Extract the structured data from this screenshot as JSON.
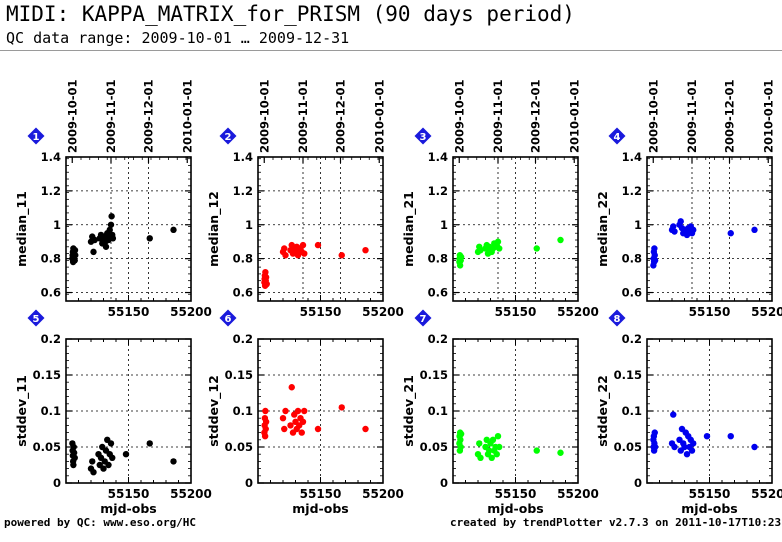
{
  "header": {
    "title": "MIDI: KAPPA_MATRIX_for_PRISM (90 days period)",
    "subtitle": "QC data range: 2009-10-01 … 2009-12-31"
  },
  "footer": {
    "left": "powered by QC: www.eso.org/HC",
    "right": "created by trendPlotter v2.7.3 on 2011-10-17T10:23:24"
  },
  "colors": {
    "black": "#000000",
    "red": "#ff0000",
    "green": "#00ff00",
    "blue": "#0000ee",
    "badge": "#1a1adc"
  },
  "chart_data": [
    {
      "type": "scatter",
      "badge": "1",
      "ylabel": "median_11",
      "color": "#000000",
      "ylim": [
        0.55,
        1.4
      ],
      "yticks": [
        "0.6",
        "0.8",
        "1",
        "1.2",
        "1.4"
      ],
      "xlim": [
        55100,
        55200
      ],
      "xticks": [
        "55150",
        "55200"
      ],
      "date_ticks": [
        "2009-10-01",
        "2009-11-01",
        "2009-12-01",
        "2010-01-01"
      ],
      "xlabel": "",
      "grid": "dotted",
      "x": [
        55105.1,
        55105.3,
        55105.5,
        55105.7,
        55105.9,
        55106.2,
        55106.5,
        55107,
        55107.2,
        55107.4,
        55120,
        55121,
        55122,
        55123,
        55127,
        55128,
        55129,
        55129.5,
        55131,
        55131.5,
        55132,
        55133,
        55134,
        55135,
        55135.5,
        55136,
        55136.5,
        55137,
        55137.5,
        55167,
        55186
      ],
      "y": [
        0.8,
        0.82,
        0.84,
        0.78,
        0.86,
        0.81,
        0.83,
        0.79,
        0.85,
        0.82,
        0.9,
        0.93,
        0.84,
        0.91,
        0.92,
        0.94,
        0.89,
        0.91,
        0.93,
        0.9,
        0.87,
        0.95,
        0.91,
        0.97,
        0.93,
        1.0,
        1.05,
        0.94,
        0.92,
        0.92,
        0.97
      ]
    },
    {
      "type": "scatter",
      "badge": "2",
      "ylabel": "median_12",
      "color": "#ff0000",
      "ylim": [
        0.55,
        1.4
      ],
      "yticks": [
        "0.6",
        "0.8",
        "1",
        "1.2",
        "1.4"
      ],
      "xlim": [
        55100,
        55200
      ],
      "xticks": [
        "55150",
        "55200"
      ],
      "date_ticks": [
        "2009-10-01",
        "2009-11-01",
        "2009-12-01",
        "2010-01-01"
      ],
      "xlabel": "",
      "grid": "dotted",
      "x": [
        55105.1,
        55105.3,
        55105.5,
        55105.7,
        55105.9,
        55106.2,
        55106.5,
        55107,
        55120,
        55121,
        55122,
        55126,
        55127,
        55128,
        55129,
        55130,
        55131,
        55132,
        55133,
        55134,
        55135,
        55136,
        55137,
        55148,
        55167,
        55186
      ],
      "y": [
        0.66,
        0.68,
        0.7,
        0.64,
        0.72,
        0.67,
        0.69,
        0.65,
        0.84,
        0.86,
        0.82,
        0.85,
        0.88,
        0.83,
        0.86,
        0.84,
        0.87,
        0.82,
        0.85,
        0.86,
        0.84,
        0.88,
        0.83,
        0.88,
        0.82,
        0.85
      ]
    },
    {
      "type": "scatter",
      "badge": "3",
      "ylabel": "median_21",
      "color": "#00ff00",
      "ylim": [
        0.55,
        1.4
      ],
      "yticks": [
        "0.6",
        "0.8",
        "1",
        "1.2",
        "1.4"
      ],
      "xlim": [
        55100,
        55200
      ],
      "xticks": [
        "55150",
        "55200"
      ],
      "date_ticks": [
        "2009-10-01",
        "2009-11-01",
        "2009-12-01",
        "2010-01-01"
      ],
      "xlabel": "",
      "grid": "dotted",
      "x": [
        55105.1,
        55105.3,
        55105.5,
        55105.7,
        55105.9,
        55106.2,
        55106.5,
        55120,
        55121,
        55122,
        55126,
        55127,
        55128,
        55129,
        55130,
        55131,
        55132,
        55133,
        55134,
        55135,
        55136,
        55137,
        55167,
        55186
      ],
      "y": [
        0.78,
        0.8,
        0.82,
        0.76,
        0.8,
        0.79,
        0.81,
        0.84,
        0.87,
        0.85,
        0.86,
        0.88,
        0.83,
        0.87,
        0.85,
        0.84,
        0.86,
        0.89,
        0.87,
        0.88,
        0.9,
        0.86,
        0.86,
        0.91
      ]
    },
    {
      "type": "scatter",
      "badge": "4",
      "ylabel": "median_22",
      "color": "#0000ee",
      "ylim": [
        0.55,
        1.4
      ],
      "yticks": [
        "0.6",
        "0.8",
        "1",
        "1.2",
        "1.4"
      ],
      "xlim": [
        55100,
        55200
      ],
      "xticks": [
        "55150",
        "55200"
      ],
      "date_ticks": [
        "2009-10-01",
        "2009-11-01",
        "2009-12-01",
        "2010-01-01"
      ],
      "xlabel": "",
      "grid": "dotted",
      "x": [
        55105.1,
        55105.3,
        55105.5,
        55105.7,
        55105.9,
        55106.2,
        55106.5,
        55120,
        55121,
        55122,
        55126,
        55127,
        55128,
        55129,
        55130,
        55131,
        55132,
        55133,
        55134,
        55135,
        55136,
        55137,
        55167,
        55186
      ],
      "y": [
        0.76,
        0.8,
        0.84,
        0.78,
        0.86,
        0.82,
        0.79,
        0.97,
        0.99,
        0.96,
        1.0,
        1.02,
        0.98,
        0.95,
        0.97,
        0.96,
        0.94,
        0.98,
        0.96,
        0.99,
        0.95,
        0.97,
        0.95,
        0.97
      ]
    },
    {
      "type": "scatter",
      "badge": "5",
      "ylabel": "stddev_11",
      "color": "#000000",
      "ylim": [
        0,
        0.2
      ],
      "yticks": [
        "0",
        "0.05",
        "0.1",
        "0.15",
        "0.2"
      ],
      "xlim": [
        55100,
        55200
      ],
      "xticks": [
        "55150",
        "55200"
      ],
      "xlabel": "mjd-obs",
      "grid": "dotted",
      "x": [
        55105.1,
        55105.3,
        55105.5,
        55105.7,
        55105.9,
        55106.2,
        55106.5,
        55107,
        55120,
        55121,
        55122,
        55126,
        55127,
        55128,
        55129,
        55130,
        55131,
        55132,
        55133,
        55134,
        55135,
        55136,
        55137,
        55148,
        55167,
        55186
      ],
      "y": [
        0.055,
        0.045,
        0.038,
        0.03,
        0.025,
        0.05,
        0.042,
        0.035,
        0.02,
        0.03,
        0.015,
        0.04,
        0.025,
        0.035,
        0.05,
        0.02,
        0.03,
        0.045,
        0.06,
        0.025,
        0.04,
        0.055,
        0.035,
        0.04,
        0.055,
        0.03
      ]
    },
    {
      "type": "scatter",
      "badge": "6",
      "ylabel": "stddev_12",
      "color": "#ff0000",
      "ylim": [
        0,
        0.2
      ],
      "yticks": [
        "0",
        "0.05",
        "0.1",
        "0.15",
        "0.2"
      ],
      "xlim": [
        55100,
        55200
      ],
      "xticks": [
        "55150",
        "55200"
      ],
      "xlabel": "mjd-obs",
      "grid": "dotted",
      "x": [
        55105.1,
        55105.3,
        55105.5,
        55105.7,
        55105.9,
        55106.2,
        55106.5,
        55120,
        55121,
        55122,
        55126,
        55127,
        55128,
        55129,
        55130,
        55131,
        55132,
        55133,
        55134,
        55135,
        55136,
        55137,
        55148,
        55167,
        55186
      ],
      "y": [
        0.07,
        0.08,
        0.09,
        0.065,
        0.1,
        0.075,
        0.085,
        0.09,
        0.075,
        0.1,
        0.08,
        0.133,
        0.07,
        0.095,
        0.085,
        0.075,
        0.1,
        0.08,
        0.09,
        0.07,
        0.085,
        0.1,
        0.075,
        0.105,
        0.075
      ]
    },
    {
      "type": "scatter",
      "badge": "7",
      "ylabel": "stddev_21",
      "color": "#00ff00",
      "ylim": [
        0,
        0.2
      ],
      "yticks": [
        "0",
        "0.05",
        "0.1",
        "0.15",
        "0.2"
      ],
      "xlim": [
        55100,
        55200
      ],
      "xticks": [
        "55150",
        "55200"
      ],
      "xlabel": "mjd-obs",
      "grid": "dotted",
      "x": [
        55105.1,
        55105.3,
        55105.5,
        55105.7,
        55105.9,
        55106.2,
        55106.5,
        55120,
        55121,
        55122,
        55126,
        55127,
        55128,
        55129,
        55130,
        55131,
        55132,
        55133,
        55134,
        55135,
        55136,
        55137,
        55167,
        55186
      ],
      "y": [
        0.055,
        0.065,
        0.045,
        0.07,
        0.06,
        0.05,
        0.068,
        0.04,
        0.055,
        0.035,
        0.05,
        0.06,
        0.04,
        0.045,
        0.055,
        0.035,
        0.06,
        0.045,
        0.05,
        0.04,
        0.065,
        0.05,
        0.045,
        0.042
      ]
    },
    {
      "type": "scatter",
      "badge": "8",
      "ylabel": "stddev_22",
      "color": "#0000ee",
      "ylim": [
        0,
        0.2
      ],
      "yticks": [
        "0",
        "0.05",
        "0.1",
        "0.15",
        "0.2"
      ],
      "xlim": [
        55100,
        55200
      ],
      "xticks": [
        "55150",
        "55200"
      ],
      "xlabel": "mjd-obs",
      "grid": "dotted",
      "x": [
        55105.1,
        55105.3,
        55105.5,
        55105.7,
        55105.9,
        55106.2,
        55106.5,
        55120,
        55121,
        55122,
        55126,
        55127,
        55128,
        55129,
        55130,
        55131,
        55132,
        55133,
        55134,
        55135,
        55136,
        55137,
        55148,
        55167,
        55186
      ],
      "y": [
        0.06,
        0.05,
        0.065,
        0.045,
        0.055,
        0.07,
        0.05,
        0.055,
        0.095,
        0.05,
        0.06,
        0.045,
        0.075,
        0.055,
        0.05,
        0.07,
        0.04,
        0.065,
        0.05,
        0.06,
        0.045,
        0.055,
        0.065,
        0.065,
        0.05
      ]
    }
  ]
}
